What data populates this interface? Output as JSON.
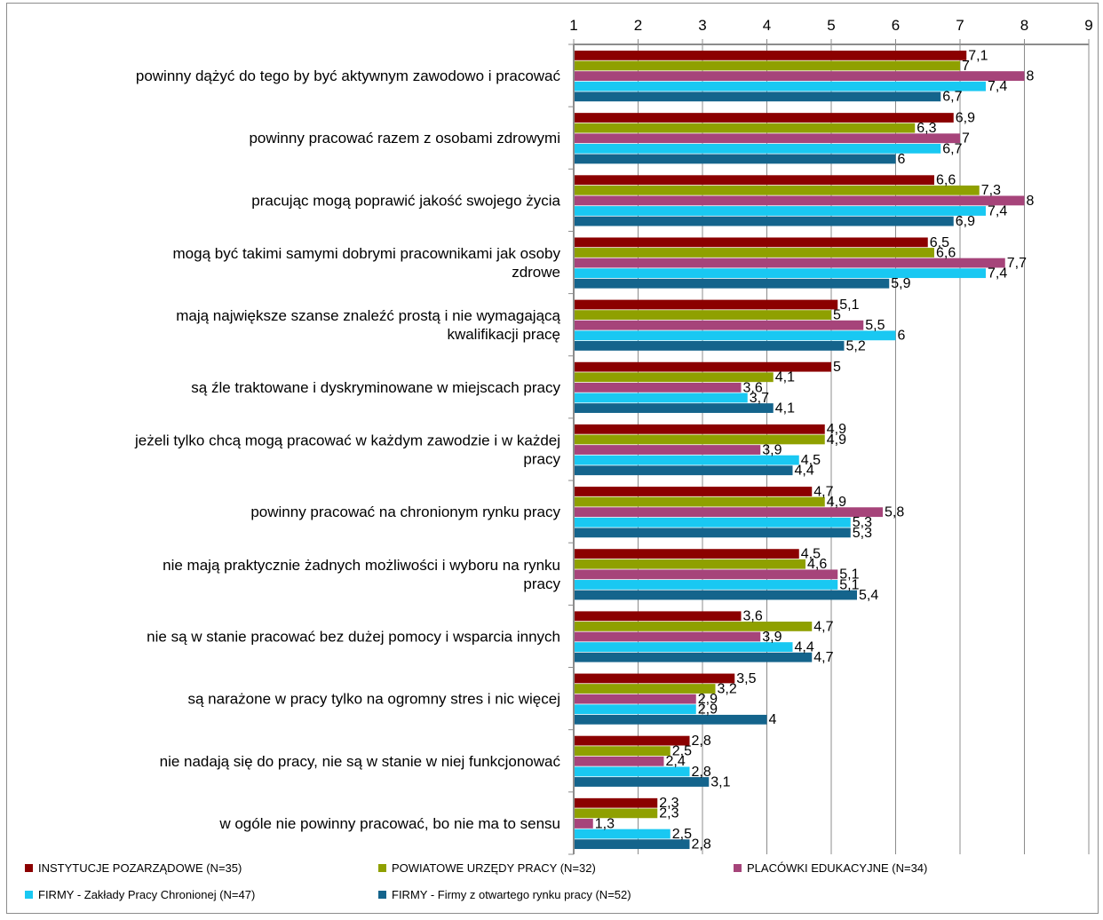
{
  "chart_data": {
    "type": "bar",
    "orientation": "horizontal",
    "title": "",
    "xlabel": "",
    "ylabel": "",
    "xlim": [
      1,
      9
    ],
    "x_ticks": [
      "1",
      "2",
      "3",
      "4",
      "5",
      "6",
      "7",
      "8",
      "9"
    ],
    "x_axis_position": "top",
    "grid": "vertical",
    "legend_position": "bottom",
    "categories": [
      [
        "powinny dążyć do tego by być aktywnym zawodowo i pracować"
      ],
      [
        "powinny pracować razem z osobami zdrowymi"
      ],
      [
        "pracując mogą poprawić jakość swojego życia"
      ],
      [
        "mogą być takimi samymi dobrymi pracownikami jak osoby",
        "zdrowe"
      ],
      [
        "mają największe szanse znaleźć prostą i nie wymagającą",
        "kwalifikacji pracę"
      ],
      [
        "są źle traktowane i dyskryminowane w miejscach pracy"
      ],
      [
        "jeżeli tylko chcą mogą  pracować w każdym zawodzie i w każdej",
        "pracy"
      ],
      [
        "powinny pracować na chronionym rynku pracy"
      ],
      [
        "nie mają praktycznie żadnych możliwości i wyboru na rynku",
        "pracy"
      ],
      [
        "nie są w stanie pracować bez dużej pomocy i wsparcia innych"
      ],
      [
        "są narażone w pracy tylko na ogromny stres i nic więcej"
      ],
      [
        "nie nadają się do pracy, nie są w stanie w niej funkcjonować"
      ],
      [
        "w ogóle nie powinny pracować, bo nie ma to sensu"
      ]
    ],
    "series": [
      {
        "name": "INSTYTUCJE POZARZĄDOWE (N=35)",
        "color": "#8b0000",
        "values": [
          7.1,
          6.9,
          6.6,
          6.5,
          5.1,
          5,
          4.9,
          4.7,
          4.5,
          3.6,
          3.5,
          2.8,
          2.3
        ],
        "labels": [
          "7,1",
          "6,9",
          "6,6",
          "6,5",
          "5,1",
          "5",
          "4,9",
          "4,7",
          "4,5",
          "3,6",
          "3,5",
          "2,8",
          "2,3"
        ]
      },
      {
        "name": "POWIATOWE URZĘDY PRACY (N=32)",
        "color": "#8fa000",
        "values": [
          7,
          6.3,
          7.3,
          6.6,
          5,
          4.1,
          4.9,
          4.9,
          4.6,
          4.7,
          3.2,
          2.5,
          2.3
        ],
        "labels": [
          "7",
          "6,3",
          "7,3",
          "6,6",
          "5",
          "4,1",
          "4,9",
          "4,9",
          "4,6",
          "4,7",
          "3,2",
          "2,5",
          "2,3"
        ]
      },
      {
        "name": "PLACÓWKI EDUKACYJNE (N=34)",
        "color": "#a6447a",
        "values": [
          8,
          7,
          8,
          7.7,
          5.5,
          3.6,
          3.9,
          5.8,
          5.1,
          3.9,
          2.9,
          2.4,
          1.3
        ],
        "labels": [
          "8",
          "7",
          "8",
          "7,7",
          "5,5",
          "3,6",
          "3,9",
          "5,8",
          "5,1",
          "3,9",
          "2,9",
          "2,4",
          "1,3"
        ]
      },
      {
        "name": "FIRMY - Zakłady Pracy Chronionej (N=47)",
        "color": "#19c8f2",
        "values": [
          7.4,
          6.7,
          7.4,
          7.4,
          6,
          3.7,
          4.5,
          5.3,
          5.1,
          4.4,
          2.9,
          2.8,
          2.5
        ],
        "labels": [
          "7,4",
          "6,7",
          "7,4",
          "7,4",
          "6",
          "3,7",
          "4,5",
          "5,3",
          "5,1",
          "4,4",
          "2,9",
          "2,8",
          "2,5"
        ]
      },
      {
        "name": "FIRMY - Firmy z otwartego rynku pracy (N=52)",
        "color": "#14648c",
        "values": [
          6.7,
          6,
          6.9,
          5.9,
          5.2,
          4.1,
          4.4,
          5.3,
          5.4,
          4.7,
          4,
          3.1,
          2.8
        ],
        "labels": [
          "6,7",
          "6",
          "6,9",
          "5,9",
          "5,2",
          "4,1",
          "4,4",
          "5,3",
          "5,4",
          "4,7",
          "4",
          "3,1",
          "2,8"
        ]
      }
    ]
  }
}
